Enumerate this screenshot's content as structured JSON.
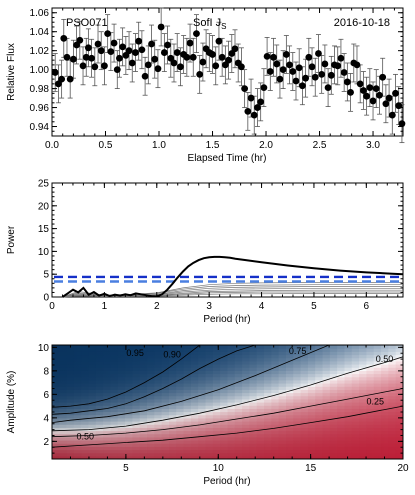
{
  "chart_data": [
    {
      "type": "scatter",
      "annotations": {
        "object": "PSO071",
        "instrument": "SofI J",
        "instrument_sub": "S",
        "date": "2016-10-18"
      },
      "xlabel": "Elapsed Time (hr)",
      "ylabel": "Relative Flux",
      "xlim": [
        0,
        3.28
      ],
      "ylim": [
        0.93,
        1.065
      ],
      "xticks": [
        "0.0",
        "0.5",
        "1.0",
        "1.5",
        "2.0",
        "2.5",
        "3.0"
      ],
      "xtick_values": [
        0,
        0.5,
        1.0,
        1.5,
        2.0,
        2.5,
        3.0
      ],
      "yticks": [
        "0.94",
        "0.96",
        "0.98",
        "1.00",
        "1.02",
        "1.04",
        "1.06"
      ],
      "ytick_values": [
        0.94,
        0.96,
        0.98,
        1.0,
        1.02,
        1.04,
        1.06
      ],
      "error": 0.02,
      "points": {
        "x": [
          0.03,
          0.06,
          0.09,
          0.11,
          0.14,
          0.17,
          0.2,
          0.23,
          0.26,
          0.29,
          0.32,
          0.34,
          0.37,
          0.4,
          0.43,
          0.46,
          0.49,
          0.52,
          0.55,
          0.58,
          0.61,
          0.63,
          0.66,
          0.69,
          0.72,
          0.75,
          0.78,
          0.81,
          0.84,
          0.87,
          0.9,
          0.93,
          0.96,
          0.99,
          1.02,
          1.05,
          1.08,
          1.11,
          1.14,
          1.17,
          1.2,
          1.23,
          1.26,
          1.29,
          1.32,
          1.35,
          1.38,
          1.41,
          1.44,
          1.47,
          1.5,
          1.53,
          1.56,
          1.59,
          1.62,
          1.65,
          1.68,
          1.71,
          1.74,
          1.77,
          1.8,
          1.83,
          1.86,
          1.89,
          1.92,
          1.95,
          1.98,
          2.01,
          2.04,
          2.07,
          2.1,
          2.13,
          2.16,
          2.19,
          2.22,
          2.25,
          2.28,
          2.31,
          2.34,
          2.37,
          2.4,
          2.43,
          2.46,
          2.49,
          2.52,
          2.55,
          2.58,
          2.61,
          2.64,
          2.67,
          2.7,
          2.73,
          2.76,
          2.79,
          2.82,
          2.85,
          2.88,
          2.91,
          2.94,
          2.97,
          3.0,
          3.03,
          3.06,
          3.09,
          3.12,
          3.15,
          3.18,
          3.21,
          3.24,
          3.27
        ],
        "y": [
          0.997,
          0.985,
          0.99,
          1.033,
          1.013,
          0.99,
          1.011,
          1.026,
          1.031,
          1.004,
          1.013,
          1.023,
          1.012,
          1.003,
          1.027,
          1.02,
          1.004,
          1.038,
          1.019,
          1.028,
          1.0,
          1.012,
          1.024,
          1.015,
          1.02,
          1.007,
          1.018,
          1.03,
          1.021,
          0.993,
          1.005,
          1.027,
          1.011,
          1.001,
          1.045,
          1.018,
          1.026,
          1.012,
          1.007,
          1.018,
          1.003,
          1.016,
          1.013,
          1.028,
          1.013,
          1.038,
          0.995,
          1.008,
          1.022,
          1.018,
          1.016,
          1.004,
          1.03,
          1.013,
          1.005,
          1.01,
          1.017,
          1.022,
          1.007,
          1.003,
          0.98,
          0.956,
          0.97,
          0.952,
          0.96,
          0.966,
          0.981,
          1.014,
          0.998,
          1.013,
          1.006,
          0.99,
          1.0,
          1.016,
          1.005,
          0.998,
          0.988,
          1.002,
          0.983,
          0.991,
          1.013,
          1.003,
          0.992,
          1.017,
          0.995,
          1.006,
          0.981,
          0.994,
          1.005,
          1.004,
          1.012,
          0.997,
          0.987,
          0.976,
          1.007,
          1.005,
          0.985,
          0.978,
          0.972,
          0.981,
          0.967,
          0.98,
          0.973,
          0.992,
          0.964,
          0.97,
          0.952,
          0.975,
          0.962,
          0.943
        ]
      }
    },
    {
      "type": "line",
      "xlabel": "Period (hr)",
      "ylabel": "Power",
      "xlim": [
        0,
        6.7
      ],
      "ylim": [
        0,
        25
      ],
      "xticks": [
        "0",
        "1",
        "2",
        "3",
        "4",
        "5",
        "6"
      ],
      "xtick_values": [
        0,
        1,
        2,
        3,
        4,
        5,
        6
      ],
      "yticks": [
        "0",
        "5",
        "10",
        "15",
        "20",
        "25"
      ],
      "ytick_values": [
        0,
        5,
        10,
        15,
        20,
        25
      ],
      "thresholds": [
        {
          "value": 4.4,
          "color": "#1530c8"
        },
        {
          "value": 3.4,
          "color": "#4a7fe0"
        }
      ],
      "main_series": {
        "x": [
          0.2,
          0.3,
          0.4,
          0.5,
          0.6,
          0.7,
          0.8,
          0.9,
          1.0,
          1.1,
          1.2,
          1.3,
          1.4,
          1.5,
          1.6,
          1.7,
          1.8,
          1.9,
          2.0,
          2.1,
          2.2,
          2.3,
          2.4,
          2.5,
          2.6,
          2.7,
          2.8,
          2.9,
          3.0,
          3.1,
          3.2,
          3.3,
          3.4,
          3.5,
          3.7,
          4.0,
          4.5,
          5.0,
          5.5,
          6.0,
          6.5,
          6.7
        ],
        "y": [
          0.0,
          0.8,
          1.6,
          1.0,
          2.0,
          0.5,
          1.1,
          0.3,
          0.7,
          0.2,
          0.5,
          0.3,
          0.6,
          0.4,
          0.8,
          0.6,
          0.4,
          0.2,
          0.1,
          0.6,
          1.6,
          2.9,
          4.3,
          5.6,
          6.7,
          7.5,
          8.1,
          8.5,
          8.7,
          8.8,
          8.8,
          8.7,
          8.6,
          8.4,
          8.1,
          7.6,
          6.9,
          6.3,
          5.8,
          5.4,
          5.1,
          5.0
        ]
      },
      "comparison_series": [
        {
          "x": [
            0.2,
            0.5,
            1.0,
            1.5,
            2.0,
            2.5,
            3.0,
            3.5,
            4.0,
            5.0,
            6.0,
            6.7
          ],
          "y": [
            0.0,
            1.2,
            0.4,
            0.6,
            0.9,
            2.0,
            2.7,
            3.0,
            3.1,
            3.2,
            3.2,
            3.2
          ]
        },
        {
          "x": [
            0.2,
            0.5,
            1.0,
            1.5,
            2.0,
            2.5,
            3.0,
            3.5,
            4.0,
            5.0,
            6.0,
            6.7
          ],
          "y": [
            0.0,
            0.9,
            0.3,
            0.5,
            0.8,
            1.7,
            2.3,
            2.5,
            2.6,
            2.7,
            2.7,
            2.7
          ]
        },
        {
          "x": [
            0.2,
            0.5,
            1.0,
            1.5,
            2.0,
            2.5,
            3.0,
            3.5,
            4.0,
            5.0,
            6.0,
            6.7
          ],
          "y": [
            0.0,
            0.7,
            0.2,
            0.4,
            0.6,
            1.4,
            1.9,
            2.1,
            2.2,
            2.3,
            2.3,
            2.3
          ]
        },
        {
          "x": [
            0.2,
            0.5,
            1.0,
            1.5,
            2.0,
            2.5,
            3.0,
            3.5,
            4.0,
            5.0,
            6.0,
            6.7
          ],
          "y": [
            0.0,
            0.5,
            0.2,
            0.3,
            0.5,
            1.1,
            1.5,
            1.7,
            1.8,
            1.9,
            1.9,
            1.9
          ]
        },
        {
          "x": [
            0.2,
            0.5,
            1.0,
            1.5,
            2.0,
            2.5,
            3.0,
            3.5,
            4.0,
            5.0,
            6.0,
            6.7
          ],
          "y": [
            0.0,
            0.4,
            0.1,
            0.2,
            0.4,
            0.8,
            1.2,
            1.3,
            1.4,
            1.5,
            1.5,
            1.5
          ]
        },
        {
          "x": [
            0.2,
            0.5,
            1.0,
            1.5,
            2.0,
            2.5,
            3.0,
            3.5,
            4.0,
            5.0,
            6.0,
            6.7
          ],
          "y": [
            0.0,
            0.3,
            0.1,
            0.2,
            0.3,
            0.6,
            0.9,
            1.0,
            1.1,
            1.1,
            1.1,
            1.1
          ]
        },
        {
          "x": [
            0.2,
            0.5,
            1.0,
            1.5,
            2.0,
            2.5,
            3.0,
            3.5,
            4.0,
            5.0,
            6.0,
            6.7
          ],
          "y": [
            0.0,
            0.2,
            0.1,
            0.1,
            0.2,
            0.4,
            0.6,
            0.7,
            0.7,
            0.8,
            0.8,
            0.8
          ]
        }
      ]
    },
    {
      "type": "heatmap",
      "xlabel": "Period (hr)",
      "ylabel": "Amplitude (%)",
      "xlim": [
        1,
        20
      ],
      "ylim": [
        0.5,
        10.2
      ],
      "xticks": [
        "5",
        "10",
        "15",
        "20"
      ],
      "xtick_values": [
        5,
        10,
        15,
        20
      ],
      "yticks": [
        "2",
        "4",
        "6",
        "8",
        "10"
      ],
      "ytick_values": [
        2,
        4,
        6,
        8,
        10
      ],
      "colorscale": [
        "#0b3c6e",
        "#ffffff",
        "#b8102a"
      ],
      "contours": [
        {
          "label": "0.95",
          "x": [
            1,
            2,
            3,
            4,
            5,
            6,
            7,
            8,
            9
          ],
          "y": [
            4.9,
            5.0,
            5.2,
            5.6,
            6.2,
            7.0,
            7.9,
            9.0,
            10.2
          ],
          "label_x": 5.5,
          "label_y": 9.5
        },
        {
          "label": "0.90",
          "x": [
            1,
            2,
            3,
            4,
            5,
            6,
            7,
            8,
            9,
            10,
            11,
            12
          ],
          "y": [
            4.3,
            4.4,
            4.6,
            4.8,
            5.2,
            5.8,
            6.5,
            7.3,
            8.2,
            9.0,
            9.7,
            10.2
          ],
          "label_x": 7.5,
          "label_y": 9.4
        },
        {
          "label": "0.75",
          "x": [
            1,
            2,
            4,
            6,
            8,
            10,
            12,
            14,
            16
          ],
          "y": [
            3.6,
            3.8,
            4.1,
            4.6,
            5.4,
            6.4,
            7.6,
            8.9,
            10.2
          ],
          "label_x": 14.3,
          "label_y": 9.7
        },
        {
          "label": "0.50",
          "x": [
            1,
            3,
            5,
            7,
            9,
            11,
            13,
            15,
            17,
            19,
            20
          ],
          "y": [
            2.9,
            3.0,
            3.3,
            3.8,
            4.4,
            5.1,
            5.9,
            6.8,
            7.8,
            8.7,
            9.2
          ],
          "label_x": 19.0,
          "label_y": 9.0
        },
        {
          "label": "0.50",
          "x": [
            1,
            3,
            5,
            7,
            9,
            11,
            13,
            15,
            17,
            19,
            20
          ],
          "y": [
            2.4,
            2.5,
            2.7,
            3.0,
            3.4,
            3.9,
            4.4,
            5.0,
            5.6,
            6.2,
            6.5
          ],
          "label_x": 2.8,
          "label_y": 2.4
        },
        {
          "label": "0.25",
          "x": [
            1,
            3,
            5,
            7,
            9,
            11,
            13,
            15,
            17,
            19,
            20
          ],
          "y": [
            1.5,
            1.7,
            1.9,
            2.1,
            2.4,
            2.7,
            3.1,
            3.6,
            4.1,
            4.7,
            5.0
          ],
          "label_x": 18.5,
          "label_y": 5.4
        }
      ]
    }
  ]
}
